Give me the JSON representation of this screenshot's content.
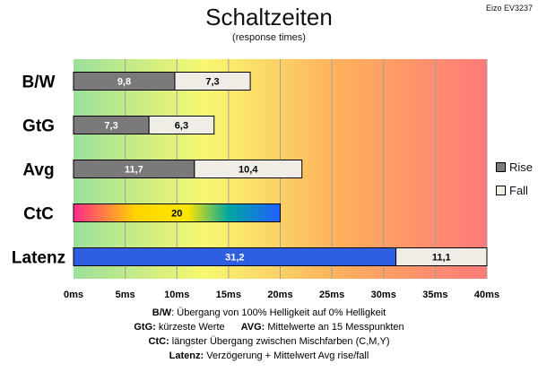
{
  "header": {
    "title": "Schaltzeiten",
    "subtitle": "(response times)",
    "model": "Eizo EV3237"
  },
  "colors": {
    "rise": "#7a7a7a",
    "fall": "#f0ede6",
    "latenz": "#2d5fe0",
    "grid": "#a0a0a0",
    "ctc_gradient": [
      "#ff2a8a",
      "#ffd400",
      "#ffe600",
      "#00a6a0",
      "#2060ff"
    ],
    "background_gradient": [
      "#9be09b",
      "#f8f870",
      "#ffa060",
      "#ff7a7a"
    ]
  },
  "chart_data": {
    "type": "bar",
    "orientation": "horizontal",
    "stacked": true,
    "categories": [
      "B/W",
      "GtG",
      "Avg",
      "CtC",
      "Latenz"
    ],
    "series": [
      {
        "name": "Rise",
        "values": [
          9.8,
          7.3,
          11.7,
          null,
          null
        ]
      },
      {
        "name": "Fall",
        "values": [
          7.3,
          6.3,
          10.4,
          null,
          11.1
        ]
      }
    ],
    "single_bars": [
      {
        "category": "CtC",
        "value": 20,
        "label": "20"
      },
      {
        "category": "Latenz",
        "value": 31.2,
        "label": "31,2"
      }
    ],
    "value_labels": [
      {
        "category": "B/W",
        "rise": "9,8",
        "fall": "7,3"
      },
      {
        "category": "GtG",
        "rise": "7,3",
        "fall": "6,3"
      },
      {
        "category": "Avg",
        "rise": "11,7",
        "fall": "10,4"
      },
      {
        "category": "Latenz",
        "fall": "11,1"
      }
    ],
    "xlim": [
      0,
      40
    ],
    "x_ticks": [
      "0ms",
      "5ms",
      "10ms",
      "15ms",
      "20ms",
      "25ms",
      "30ms",
      "35ms",
      "40ms"
    ],
    "x_tick_values": [
      0,
      5,
      10,
      15,
      20,
      25,
      30,
      35,
      40
    ],
    "grid": true,
    "legend_position": "right"
  },
  "legend": [
    {
      "name": "Rise",
      "color": "#7a7a7a"
    },
    {
      "name": "Fall",
      "color": "#f0ede6"
    }
  ],
  "notes": {
    "line1_key": "B/W",
    "line1_text": ":  Übergang von 100% Helligkeit auf 0% Helligkeit",
    "line2_key_a": "GtG:",
    "line2_text_a": " kürzeste  Werte",
    "line2_key_b": "AVG:",
    "line2_text_b": " Mittelwerte  an 15 Messpunkten",
    "line3_key": "CtC:",
    "line3_text": " längster Übergang  zwischen Mischfarben (C,M,Y)",
    "line4_key": "Latenz:",
    "line4_text": " Verzögerung  + Mittelwert  Avg rise/fall"
  }
}
